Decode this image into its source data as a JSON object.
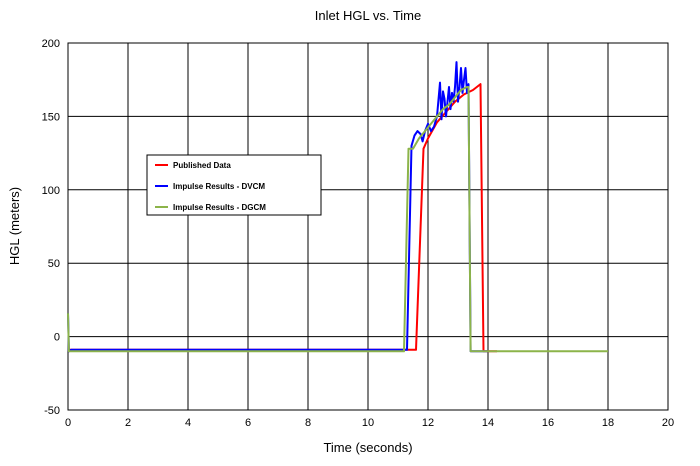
{
  "chart_data": {
    "type": "line",
    "title": "Inlet HGL vs. Time",
    "xlabel": "Time (seconds)",
    "ylabel": "HGL (meters)",
    "xlim": [
      0,
      20
    ],
    "ylim": [
      -50,
      200
    ],
    "xticks": [
      0,
      2,
      4,
      6,
      8,
      10,
      12,
      14,
      16,
      18,
      20
    ],
    "yticks": [
      -50,
      0,
      50,
      100,
      150,
      200
    ],
    "grid": true,
    "legend_placement": "center-left",
    "series": [
      {
        "name": "Published Data",
        "color": "#ff0000",
        "x": [
          0,
          0.05,
          11.6,
          11.85,
          12.0,
          12.3,
          12.6,
          12.9,
          13.2,
          13.5,
          13.75,
          13.85,
          14.0,
          14.3
        ],
        "y": [
          -9,
          -9,
          -9,
          128,
          135,
          146,
          153,
          160,
          165,
          168,
          172,
          -10,
          -10,
          -10
        ]
      },
      {
        "name": "Impulse Results - DVCM",
        "color": "#0000ff",
        "x": [
          0,
          0.03,
          0.1,
          11.3,
          11.45,
          11.55,
          11.65,
          11.75,
          11.82,
          11.9,
          12.0,
          12.1,
          12.2,
          12.3,
          12.4,
          12.45,
          12.5,
          12.55,
          12.6,
          12.65,
          12.7,
          12.75,
          12.8,
          12.85,
          12.9,
          12.95,
          13.0,
          13.05,
          13.1,
          13.15,
          13.2,
          13.25,
          13.3,
          13.35,
          13.42,
          13.6,
          14.0
        ],
        "y": [
          16,
          -10,
          -9,
          -9,
          130,
          137,
          140,
          138,
          133,
          140,
          145,
          140,
          143,
          150,
          173,
          148,
          167,
          162,
          150,
          160,
          170,
          155,
          166,
          160,
          170,
          187,
          160,
          170,
          183,
          166,
          175,
          183,
          166,
          172,
          -10,
          -10,
          -10
        ]
      },
      {
        "name": "Impulse Results - DGCM",
        "color": "#8cb44a",
        "x": [
          0,
          0.03,
          0.1,
          11.2,
          11.35,
          11.5,
          11.7,
          11.9,
          12.1,
          12.3,
          12.5,
          12.7,
          12.9,
          13.1,
          13.3,
          13.35,
          13.42,
          18.0
        ],
        "y": [
          16,
          -10,
          -10,
          -10,
          128,
          128,
          135,
          140,
          145,
          150,
          155,
          158,
          163,
          168,
          170,
          170,
          -10,
          -10
        ]
      }
    ]
  }
}
